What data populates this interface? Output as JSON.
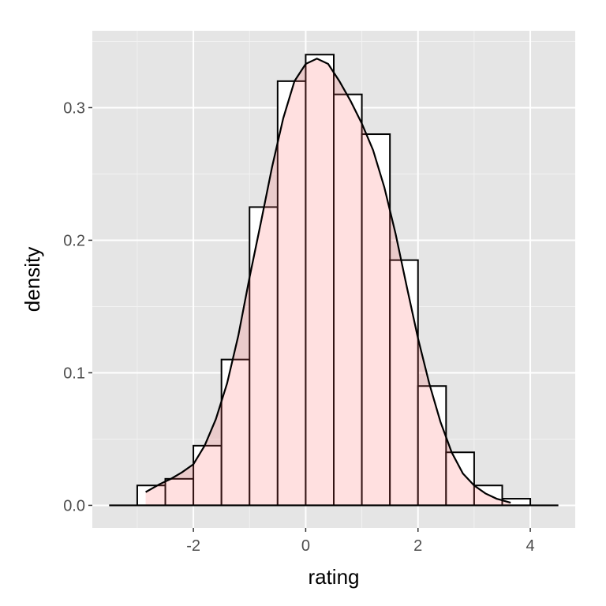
{
  "chart_data": {
    "type": "bar",
    "xlabel": "rating",
    "ylabel": "density",
    "xlim": [
      -3.8,
      4.8
    ],
    "ylim": [
      -0.017,
      0.358
    ],
    "x_ticks": [
      -2,
      0,
      2,
      4
    ],
    "x_tick_labels": [
      "-2",
      "0",
      "2",
      "4"
    ],
    "y_ticks": [
      0.0,
      0.1,
      0.2,
      0.3
    ],
    "y_tick_labels": [
      "0.0",
      "0.1",
      "0.2",
      "0.3"
    ],
    "grid": true,
    "histogram": {
      "bin_width": 0.5,
      "bins": [
        {
          "x0": -3.0,
          "x1": -2.5,
          "density": 0.015
        },
        {
          "x0": -2.5,
          "x1": -2.0,
          "density": 0.02
        },
        {
          "x0": -2.0,
          "x1": -1.5,
          "density": 0.045
        },
        {
          "x0": -1.5,
          "x1": -1.0,
          "density": 0.11
        },
        {
          "x0": -1.0,
          "x1": -0.5,
          "density": 0.225
        },
        {
          "x0": -0.5,
          "x1": 0.0,
          "density": 0.32
        },
        {
          "x0": 0.0,
          "x1": 0.5,
          "density": 0.34
        },
        {
          "x0": 0.5,
          "x1": 1.0,
          "density": 0.31
        },
        {
          "x0": 1.0,
          "x1": 1.5,
          "density": 0.28
        },
        {
          "x0": 1.5,
          "x1": 2.0,
          "density": 0.185
        },
        {
          "x0": 2.0,
          "x1": 2.5,
          "density": 0.09
        },
        {
          "x0": 2.5,
          "x1": 3.0,
          "density": 0.04
        },
        {
          "x0": 3.0,
          "x1": 3.5,
          "density": 0.015
        },
        {
          "x0": 3.5,
          "x1": 4.0,
          "density": 0.005
        }
      ],
      "fill": "#ffffff",
      "outline": "#000000"
    },
    "density_curve": {
      "x_range": [
        -2.85,
        3.65
      ],
      "fill": "#ff6666",
      "fill_opacity": 0.2,
      "line_color": "#000000",
      "points": [
        [
          -2.85,
          0.01
        ],
        [
          -2.6,
          0.016
        ],
        [
          -2.4,
          0.02
        ],
        [
          -2.2,
          0.025
        ],
        [
          -2.0,
          0.031
        ],
        [
          -1.8,
          0.045
        ],
        [
          -1.6,
          0.065
        ],
        [
          -1.4,
          0.092
        ],
        [
          -1.2,
          0.128
        ],
        [
          -1.0,
          0.172
        ],
        [
          -0.8,
          0.213
        ],
        [
          -0.6,
          0.255
        ],
        [
          -0.4,
          0.292
        ],
        [
          -0.2,
          0.32
        ],
        [
          0.0,
          0.333
        ],
        [
          0.2,
          0.337
        ],
        [
          0.4,
          0.333
        ],
        [
          0.6,
          0.32
        ],
        [
          0.8,
          0.305
        ],
        [
          1.0,
          0.288
        ],
        [
          1.2,
          0.268
        ],
        [
          1.4,
          0.24
        ],
        [
          1.6,
          0.205
        ],
        [
          1.8,
          0.165
        ],
        [
          2.0,
          0.126
        ],
        [
          2.2,
          0.092
        ],
        [
          2.4,
          0.063
        ],
        [
          2.6,
          0.04
        ],
        [
          2.8,
          0.024
        ],
        [
          3.0,
          0.015
        ],
        [
          3.2,
          0.009
        ],
        [
          3.4,
          0.005
        ],
        [
          3.65,
          0.002
        ]
      ]
    },
    "baseline": {
      "x_range": [
        -3.5,
        4.5
      ],
      "y": 0.0
    }
  },
  "style": {
    "panel_background": "#e5e5e5",
    "grid_major": "#ffffff",
    "grid_minor": "#f2f2f2"
  }
}
